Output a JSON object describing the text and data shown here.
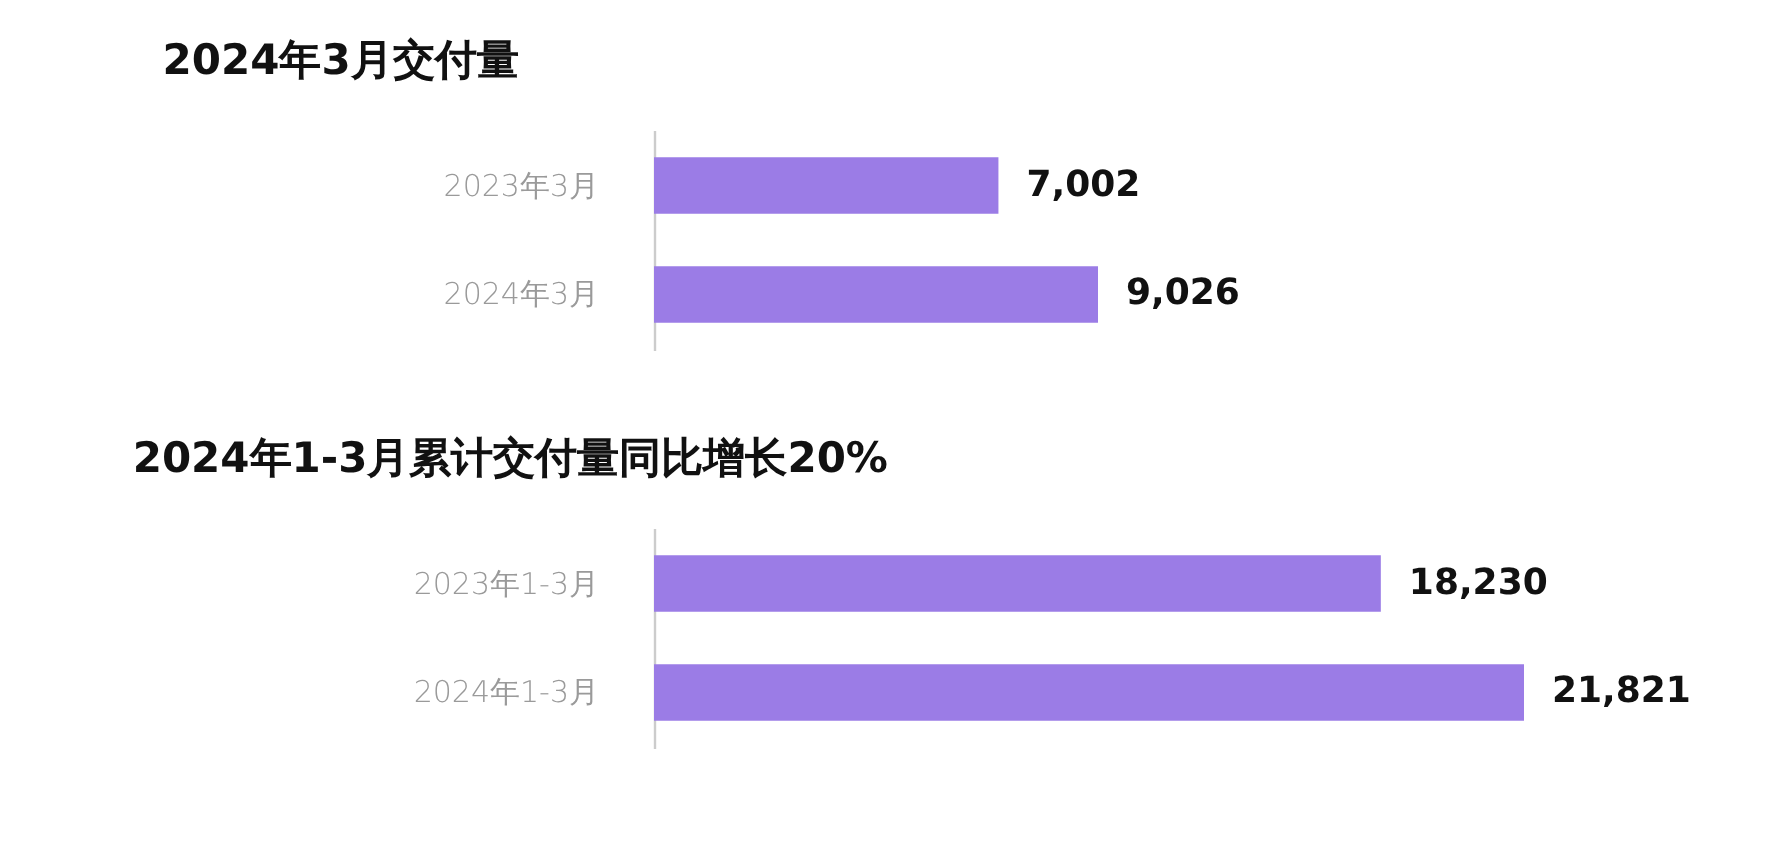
{
  "chart_data": [
    {
      "type": "bar",
      "title": "2024年3月交付量",
      "orientation": "horizontal",
      "categories": [
        "2023年3月",
        "2024年3月"
      ],
      "values": [
        7002,
        9026
      ],
      "value_labels": [
        "7,002",
        "9,026"
      ],
      "color": "#9b7ce6"
    },
    {
      "type": "bar",
      "title": "2024年1-3月累计交付量同比增长20%",
      "orientation": "horizontal",
      "categories": [
        "2023年1-3月",
        "2024年1-3月"
      ],
      "values": [
        18230,
        21821
      ],
      "value_labels": [
        "18,230",
        "21,821"
      ],
      "color": "#9b7ce6"
    }
  ]
}
